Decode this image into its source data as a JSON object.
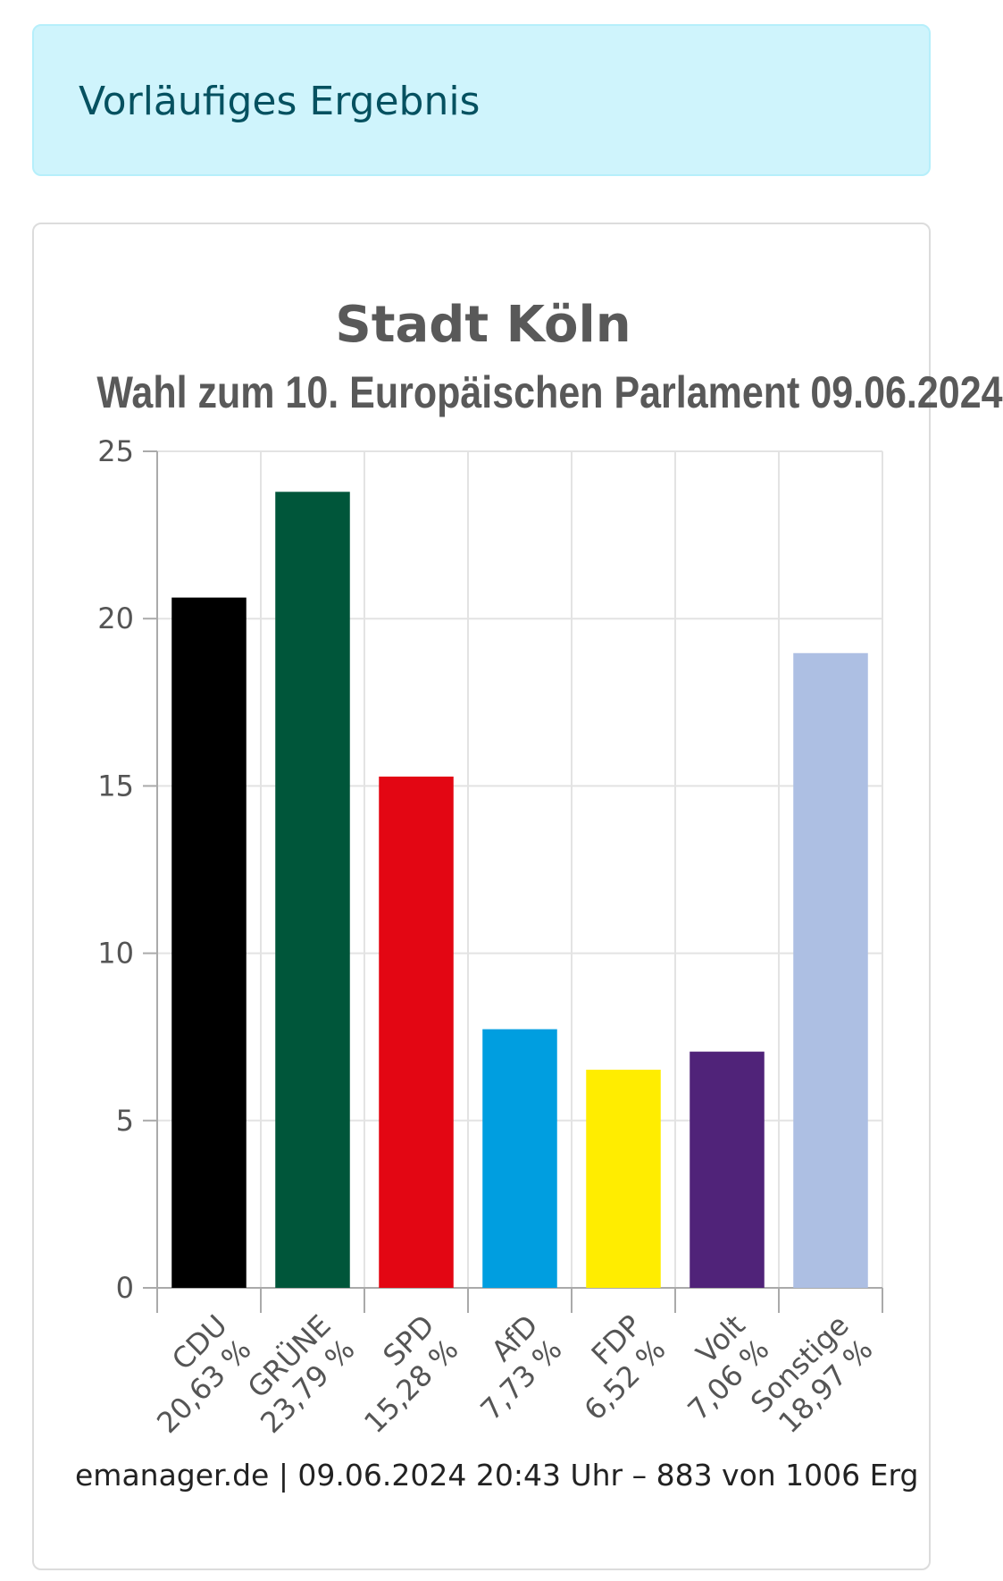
{
  "banner": {
    "text": "Vorläufiges Ergebnis"
  },
  "chart_data": {
    "type": "bar",
    "title": "Stadt Köln",
    "subtitle": "Wahl zum 10. Europäischen Parlament 09.06.2024",
    "xlabel": "",
    "ylabel": "",
    "ylim": [
      0,
      25
    ],
    "yticks": [
      "0",
      "5",
      "10",
      "15",
      "20",
      "25"
    ],
    "grid": true,
    "categories": [
      "CDU",
      "GRÜNE",
      "SPD",
      "AfD",
      "FDP",
      "Volt",
      "Sonstige"
    ],
    "value_labels": [
      "20,63 %",
      "23,79 %",
      "15,28 %",
      "7,73 %",
      "6,52 %",
      "7,06 %",
      "18,97 %"
    ],
    "values": [
      20.63,
      23.79,
      15.28,
      7.73,
      6.52,
      7.06,
      18.97
    ],
    "colors": [
      "#000000",
      "#00563a",
      "#e30613",
      "#009ee0",
      "#ffed00",
      "#502379",
      "#adbfe3"
    ]
  },
  "source": {
    "text": "emanager.de | 09.06.2024 20:43 Uhr – 883 von 1006 Erg"
  }
}
